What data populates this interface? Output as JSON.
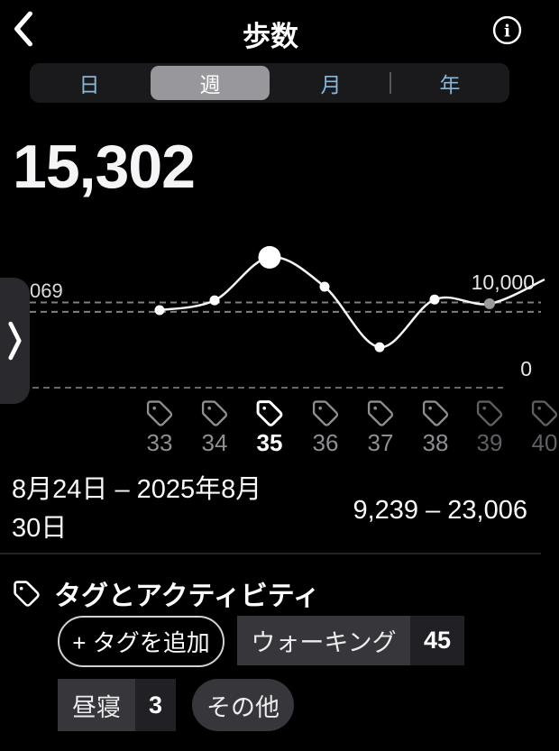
{
  "header": {
    "title": "歩数"
  },
  "tabs": [
    {
      "label": "日",
      "selected": false
    },
    {
      "label": "週",
      "selected": true
    },
    {
      "label": "月",
      "selected": false
    },
    {
      "label": "年",
      "selected": false
    }
  ],
  "summary_value": "15,302",
  "chart_data": {
    "type": "line",
    "categories": [
      "33",
      "34",
      "35",
      "36",
      "37",
      "38",
      "39"
    ],
    "series": [
      {
        "name": "steps-per-week",
        "values": [
          9100,
          10250,
          15302,
          11850,
          4750,
          10350,
          9850
        ]
      }
    ],
    "point_states": [
      "normal",
      "normal",
      "selected",
      "normal",
      "normal",
      "normal",
      "current"
    ],
    "selected_category": "35",
    "selected_value": 15302,
    "trailing_edge_value": 12700,
    "goal_line": {
      "value": 10000,
      "label": "10,000"
    },
    "average_line": {
      "label": "069",
      "approx_value": 8900
    },
    "zero_line": {
      "value": 0,
      "label": "0"
    },
    "ylim": [
      0,
      20000
    ],
    "grid": "dashed-horizontal",
    "legend": "none"
  },
  "axis_labels": {
    "average": "069",
    "goal": "10,000",
    "zero": "0"
  },
  "weeks": [
    {
      "label": "33",
      "state": "normal"
    },
    {
      "label": "34",
      "state": "normal"
    },
    {
      "label": "35",
      "state": "selected"
    },
    {
      "label": "36",
      "state": "normal"
    },
    {
      "label": "37",
      "state": "normal"
    },
    {
      "label": "38",
      "state": "normal"
    },
    {
      "label": "39",
      "state": "dim"
    },
    {
      "label": "40",
      "state": "dim"
    }
  ],
  "footer": {
    "date_range": "8月24日 – 2025年8月30日",
    "value_range": "9,239 – 23,006"
  },
  "tags": {
    "section_title": "タグとアクティビティ",
    "add_label": "+ タグを追加",
    "chips": [
      {
        "label": "ウォーキング",
        "count": "45"
      },
      {
        "label": "昼寝",
        "count": "3"
      },
      {
        "label": "その他",
        "count": ""
      }
    ]
  },
  "colors": {
    "background": "#000000",
    "accent_blue": "#8ab7d9",
    "selected_segment": "#97979c",
    "line": "#f5f5f5",
    "current_point": "#98989d",
    "chip_bg": "#36363b",
    "chip_count_bg": "#202025"
  }
}
